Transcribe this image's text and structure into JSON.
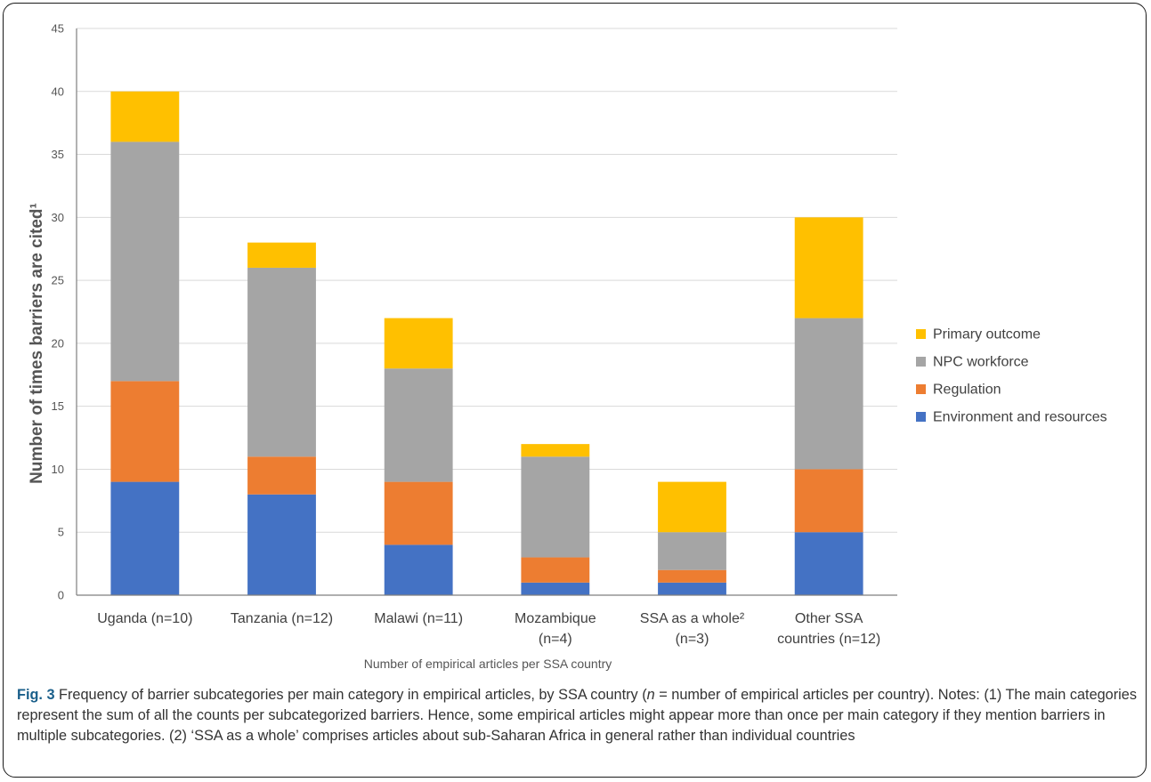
{
  "chart_data": {
    "type": "bar",
    "stacked": true,
    "categories": [
      [
        "Uganda (n=10)"
      ],
      [
        "Tanzania (n=12)"
      ],
      [
        "Malawi (n=11)"
      ],
      [
        "Mozambique",
        "(n=4)"
      ],
      [
        "SSA as a whole²",
        "(n=3)"
      ],
      [
        "Other SSA",
        "countries (n=12)"
      ]
    ],
    "series": [
      {
        "name": "Environment and resources",
        "color": "#4472C4",
        "values": [
          9,
          8,
          4,
          1,
          1,
          5
        ]
      },
      {
        "name": "Regulation",
        "color": "#ED7D31",
        "values": [
          8,
          3,
          5,
          2,
          1,
          5
        ]
      },
      {
        "name": "NPC workforce",
        "color": "#A5A5A5",
        "values": [
          19,
          15,
          9,
          8,
          3,
          12
        ]
      },
      {
        "name": "Primary outcome",
        "color": "#FFC000",
        "values": [
          4,
          2,
          4,
          1,
          4,
          8
        ]
      }
    ],
    "xlabel": "Number of empirical articles per SSA country",
    "ylabel": "Number of times barriers are cited¹",
    "ylim": [
      0,
      45
    ],
    "yticks": [
      0,
      5,
      10,
      15,
      20,
      25,
      30,
      35,
      40,
      45
    ],
    "grid": true,
    "legend_position": "right"
  },
  "caption": {
    "label": "Fig. 3",
    "text_before_n": " Frequency of barrier subcategories per main category in empirical articles, by SSA country (",
    "n_symbol": "n",
    "text_after_n": " = number of empirical articles per country). Notes: (1) The main categories represent the sum of all the counts per subcategorized barriers. Hence, some empirical articles might appear more than once per main category if they mention barriers in multiple subcategories. (2) ‘SSA as a whole’ comprises articles about sub-Saharan Africa in general rather than individual countries"
  }
}
